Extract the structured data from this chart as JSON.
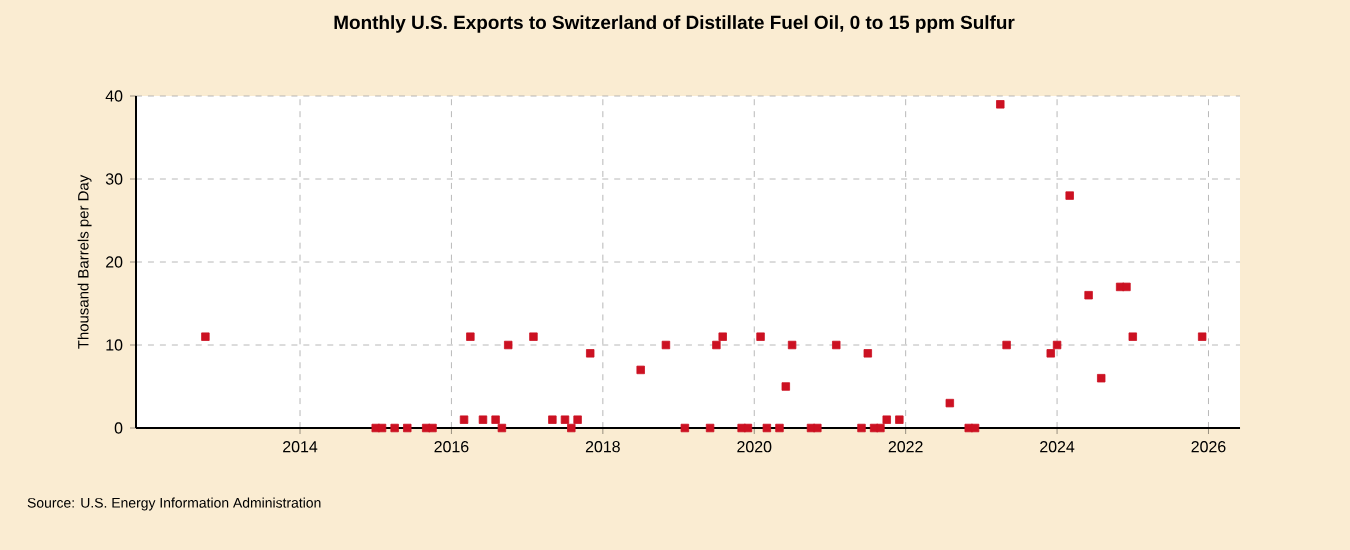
{
  "chart_data": {
    "type": "scatter",
    "title": "Monthly U.S. Exports to Switzerland of Distillate Fuel Oil, 0 to 15 ppm Sulfur",
    "ylabel": "Thousand Barrels per Day",
    "annotations": [
      "Source: U.S. Energy Information Administration"
    ],
    "x": [
      "2012-10",
      "2015-01",
      "2015-02",
      "2015-04",
      "2015-06",
      "2015-09",
      "2015-10",
      "2016-03",
      "2016-04",
      "2016-06",
      "2016-08",
      "2016-09",
      "2016-10",
      "2017-02",
      "2017-05",
      "2017-07",
      "2017-08",
      "2017-09",
      "2017-11",
      "2018-07",
      "2018-11",
      "2019-02",
      "2019-06",
      "2019-07",
      "2019-08",
      "2019-11",
      "2019-12",
      "2020-02",
      "2020-03",
      "2020-05",
      "2020-06",
      "2020-07",
      "2020-10",
      "2020-11",
      "2021-02",
      "2021-06",
      "2021-07",
      "2021-08",
      "2021-09",
      "2021-10",
      "2021-12",
      "2022-08",
      "2022-11",
      "2022-12",
      "2023-04",
      "2023-05",
      "2023-12",
      "2024-01",
      "2024-03",
      "2024-06",
      "2024-08",
      "2024-11",
      "2024-12",
      "2025-01",
      "2025-12"
    ],
    "series": [
      {
        "color": "#cc1122",
        "values": [
          11,
          0,
          0,
          0,
          0,
          0,
          0,
          1,
          11,
          1,
          1,
          0,
          10,
          11,
          1,
          1,
          0,
          1,
          9,
          7,
          10,
          0,
          0,
          10,
          11,
          0,
          0,
          11,
          0,
          0,
          5,
          10,
          0,
          0,
          10,
          0,
          9,
          0,
          0,
          1,
          1,
          3,
          0,
          0,
          39,
          10,
          9,
          10,
          28,
          16,
          6,
          17,
          17,
          11,
          11
        ]
      }
    ],
    "xlim": [
      "2011-11",
      "2026-06"
    ],
    "xticks": [
      "2014",
      "2016",
      "2018",
      "2020",
      "2022",
      "2024",
      "2026"
    ],
    "ylim": [
      0,
      40
    ],
    "yticks": [
      0,
      10,
      20,
      30,
      40
    ],
    "grid": true,
    "marker": "square"
  }
}
